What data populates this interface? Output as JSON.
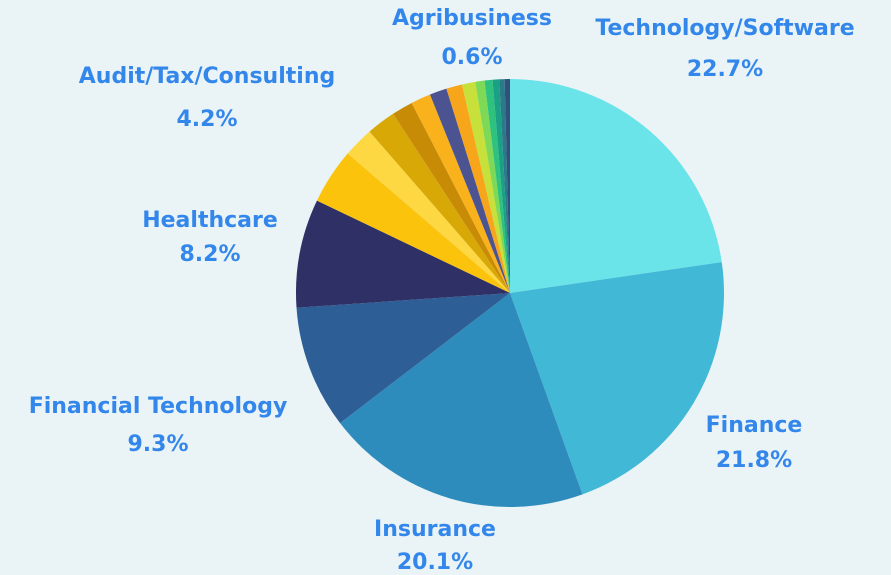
{
  "chart_data": {
    "type": "pie",
    "categories": [
      "Technology/Software",
      "Finance",
      "Insurance",
      "Financial Technology",
      "Healthcare",
      "Audit/Tax/Consulting",
      null,
      null,
      null,
      null,
      null,
      null,
      null,
      null,
      "Agribusiness",
      null,
      null,
      null
    ],
    "values": [
      22.7,
      21.8,
      20.1,
      9.3,
      8.2,
      4.2,
      2.3,
      2.2,
      1.6,
      1.5,
      1.3,
      1.2,
      1.0,
      0.7,
      0.6,
      0.5,
      0.4,
      0.4
    ],
    "value_labels": [
      "22.7%",
      "21.8%",
      "20.1%",
      "9.3%",
      "8.2%",
      "4.2%",
      null,
      null,
      null,
      null,
      null,
      null,
      null,
      null,
      "0.6%",
      null,
      null,
      null
    ],
    "colors": [
      "#6ae4e9",
      "#42b8d7",
      "#2e8cbd",
      "#2d5e96",
      "#2f3166",
      "#fcc30c",
      "#fdd843",
      "#d8a807",
      "#c88b06",
      "#f9b11c",
      "#4b5491",
      "#f7a61b",
      "#c7e03a",
      "#7ed957",
      "#2ec27e",
      "#1aa085",
      "#2b7a8a",
      "#33507a"
    ]
  }
}
